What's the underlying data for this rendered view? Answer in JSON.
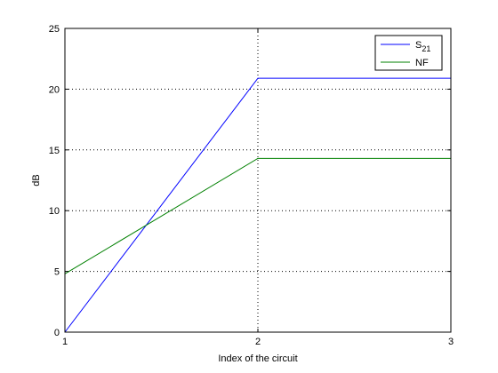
{
  "chart_data": {
    "type": "line",
    "xlabel": "Index of the circuit",
    "ylabel": "dB",
    "xlim": [
      1,
      3
    ],
    "ylim": [
      0,
      25
    ],
    "xticks": [
      1,
      2,
      3
    ],
    "yticks": [
      0,
      5,
      10,
      15,
      20,
      25
    ],
    "grid": true,
    "legend_position": "top-right",
    "series": [
      {
        "name": "S",
        "name_subscript": "21",
        "color": "#0000ff",
        "x": [
          1,
          2,
          3
        ],
        "y": [
          0,
          20.9,
          20.9
        ]
      },
      {
        "name": "NF",
        "color": "#008000",
        "x": [
          1,
          2,
          3
        ],
        "y": [
          4.8,
          14.3,
          14.3
        ]
      }
    ]
  }
}
